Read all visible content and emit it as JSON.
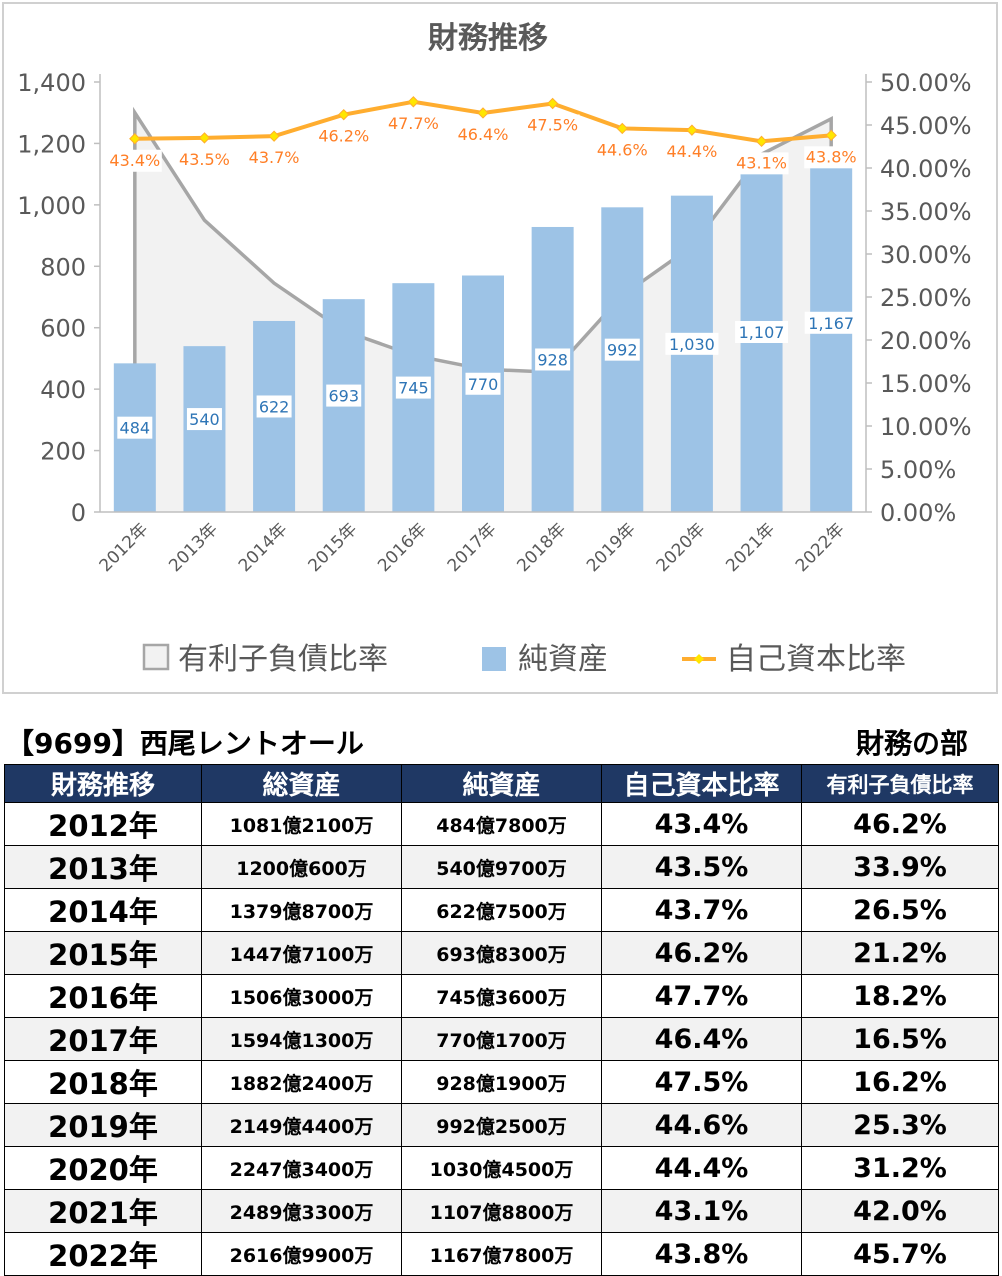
{
  "chart_data": {
    "type": "bar",
    "title": "財務推移",
    "categories": [
      "2012年",
      "2013年",
      "2014年",
      "2015年",
      "2016年",
      "2017年",
      "2018年",
      "2019年",
      "2020年",
      "2021年",
      "2022年"
    ],
    "series": [
      {
        "name": "有利子負債比率",
        "chart_type": "area",
        "axis": "left",
        "color": "#a6a6a6",
        "values": [
          1300,
          950,
          745,
          590,
          510,
          465,
          455,
          705,
          865,
          1165,
          1280
        ]
      },
      {
        "name": "純資産",
        "chart_type": "bar",
        "axis": "left",
        "color": "#9dc3e6",
        "values": [
          484,
          540,
          622,
          693,
          745,
          770,
          928,
          992,
          1030,
          1107,
          1167
        ],
        "labels": [
          "484",
          "540",
          "622",
          "693",
          "745",
          "770",
          "928",
          "992",
          "1,030",
          "1,107",
          "1,167"
        ]
      },
      {
        "name": "自己資本比率",
        "chart_type": "line",
        "axis": "right",
        "color": "#ffad2f",
        "values": [
          43.4,
          43.5,
          43.7,
          46.2,
          47.7,
          46.4,
          47.5,
          44.6,
          44.4,
          43.1,
          43.8
        ],
        "labels": [
          "43.4%",
          "43.5%",
          "43.7%",
          "46.2%",
          "47.7%",
          "46.4%",
          "47.5%",
          "44.6%",
          "44.4%",
          "43.1%",
          "43.8%"
        ]
      }
    ],
    "y_left": {
      "min": 0,
      "max": 1400,
      "ticks": [
        "0",
        "200",
        "400",
        "600",
        "800",
        "1,000",
        "1,200",
        "1,400"
      ]
    },
    "y_right": {
      "min": 0,
      "max": 50,
      "ticks": [
        "0.00%",
        "5.00%",
        "10.00%",
        "15.00%",
        "20.00%",
        "25.00%",
        "30.00%",
        "35.00%",
        "40.00%",
        "45.00%",
        "50.00%"
      ]
    },
    "grid": false,
    "legend_position": "bottom",
    "bar_label_color": "#2e75b6",
    "line_label_color": "#ff7f27"
  },
  "section": {
    "title": "【9699】西尾レントオール",
    "subtitle": "財務の部"
  },
  "table": {
    "headers": [
      "財務推移",
      "総資産",
      "純資産",
      "自己資本比率",
      "有利子負債比率"
    ],
    "rows": [
      [
        "2012年",
        "1081億2100万",
        "484億7800万",
        "43.4%",
        "46.2%"
      ],
      [
        "2013年",
        "1200億600万",
        "540億9700万",
        "43.5%",
        "33.9%"
      ],
      [
        "2014年",
        "1379億8700万",
        "622億7500万",
        "43.7%",
        "26.5%"
      ],
      [
        "2015年",
        "1447億7100万",
        "693億8300万",
        "46.2%",
        "21.2%"
      ],
      [
        "2016年",
        "1506億3000万",
        "745億3600万",
        "47.7%",
        "18.2%"
      ],
      [
        "2017年",
        "1594億1300万",
        "770億1700万",
        "46.4%",
        "16.5%"
      ],
      [
        "2018年",
        "1882億2400万",
        "928億1900万",
        "47.5%",
        "16.2%"
      ],
      [
        "2019年",
        "2149億4400万",
        "992億2500万",
        "44.6%",
        "25.3%"
      ],
      [
        "2020年",
        "2247億3400万",
        "1030億4500万",
        "44.4%",
        "31.2%"
      ],
      [
        "2021年",
        "2489億3300万",
        "1107億8800万",
        "43.1%",
        "42.0%"
      ],
      [
        "2022年",
        "2616億9900万",
        "1167億7800万",
        "43.8%",
        "45.7%"
      ]
    ]
  }
}
